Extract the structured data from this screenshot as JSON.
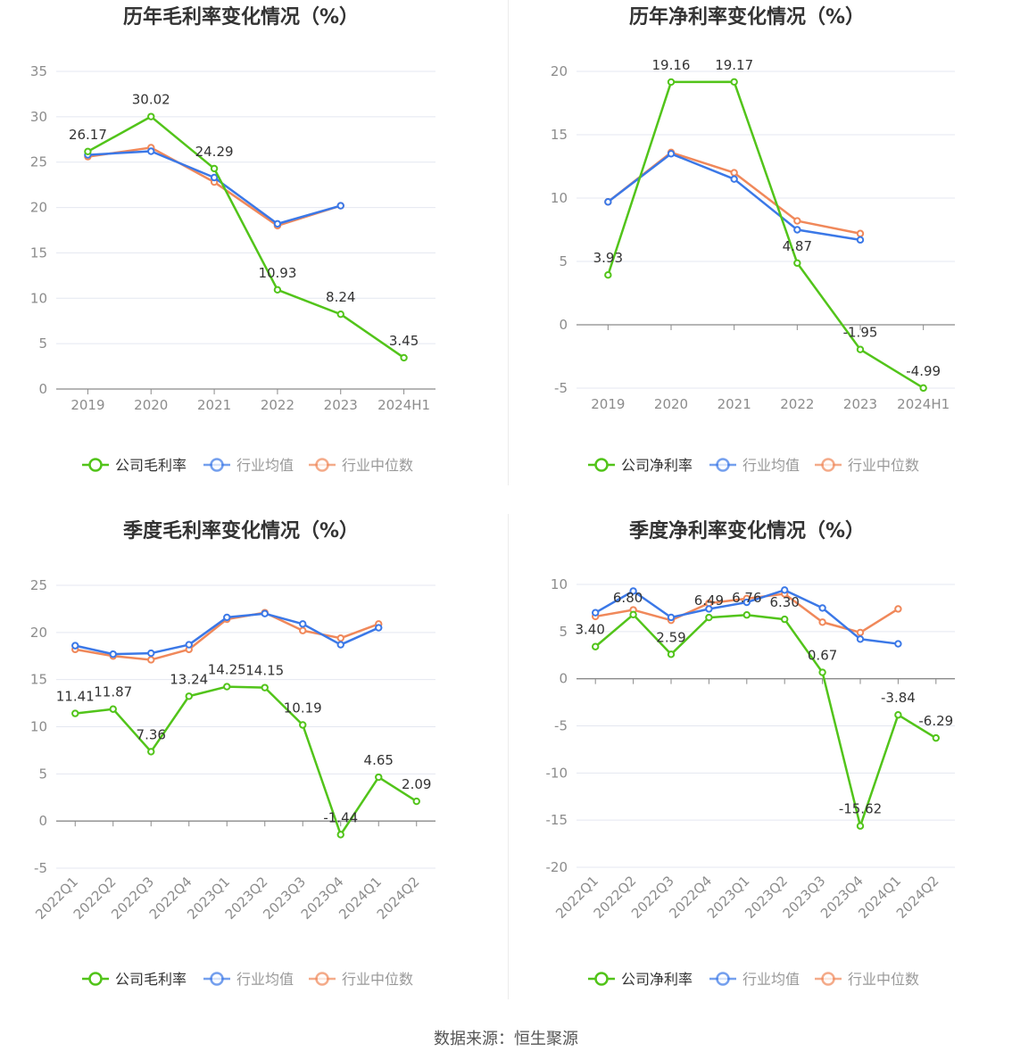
{
  "source": "数据来源：恒生聚源",
  "colors": {
    "company": "#52c41a",
    "avg": "#3b78e7",
    "median": "#f0885a",
    "grid": "#e4e7f0",
    "axis": "#8a8a8a",
    "text": "#333333",
    "tick": "#8c8c8c"
  },
  "chart_data": [
    {
      "type": "line",
      "title": "历年毛利率变化情况（%）",
      "categories": [
        "2019",
        "2020",
        "2021",
        "2022",
        "2023",
        "2024H1"
      ],
      "ylim": [
        0,
        35
      ],
      "yticks": [
        0,
        5,
        10,
        15,
        20,
        25,
        30,
        35
      ],
      "series": [
        {
          "name": "公司毛利率",
          "values": [
            26.17,
            30.02,
            24.29,
            10.93,
            8.24,
            3.45
          ],
          "labels": [
            "26.17",
            "30.02",
            "24.29",
            "10.93",
            "8.24",
            "3.45"
          ]
        },
        {
          "name": "行业均值",
          "values": [
            25.8,
            26.2,
            23.3,
            18.2,
            20.2,
            null
          ]
        },
        {
          "name": "行业中位数",
          "values": [
            25.6,
            26.6,
            22.8,
            18.0,
            20.2,
            null
          ]
        }
      ],
      "legend": "bottom"
    },
    {
      "type": "line",
      "title": "历年净利率变化情况（%）",
      "categories": [
        "2019",
        "2020",
        "2021",
        "2022",
        "2023",
        "2024H1"
      ],
      "ylim": [
        -5,
        20
      ],
      "yticks": [
        -5,
        0,
        5,
        10,
        15,
        20
      ],
      "series": [
        {
          "name": "公司净利率",
          "values": [
            3.93,
            19.16,
            19.17,
            4.87,
            -1.95,
            -4.99
          ],
          "labels": [
            "3.93",
            "19.16",
            "19.17",
            "4.87",
            "-1.95",
            "-4.99"
          ]
        },
        {
          "name": "行业均值",
          "values": [
            9.7,
            13.5,
            11.5,
            7.5,
            6.7,
            null
          ]
        },
        {
          "name": "行业中位数",
          "values": [
            9.7,
            13.6,
            12.0,
            8.2,
            7.2,
            null
          ]
        }
      ],
      "legend": "bottom"
    },
    {
      "type": "line",
      "title": "季度毛利率变化情况（%）",
      "categories": [
        "2022Q1",
        "2022Q2",
        "2022Q3",
        "2022Q4",
        "2023Q1",
        "2023Q2",
        "2023Q3",
        "2023Q4",
        "2024Q1",
        "2024Q2"
      ],
      "ylim": [
        -5,
        25
      ],
      "yticks": [
        -5,
        0,
        5,
        10,
        15,
        20,
        25
      ],
      "series": [
        {
          "name": "公司毛利率",
          "values": [
            11.41,
            11.87,
            7.36,
            13.24,
            14.25,
            14.15,
            10.19,
            -1.44,
            4.65,
            2.09
          ],
          "labels": [
            "11.41",
            "11.87",
            "7.36",
            "13.24",
            "14.25",
            "14.15",
            "10.19",
            "-1.44",
            "4.65",
            "2.09"
          ]
        },
        {
          "name": "行业均值",
          "values": [
            18.6,
            17.7,
            17.8,
            18.7,
            21.6,
            22.0,
            20.9,
            18.7,
            20.5,
            null
          ]
        },
        {
          "name": "行业中位数",
          "values": [
            18.2,
            17.5,
            17.1,
            18.2,
            21.4,
            22.1,
            20.2,
            19.4,
            20.9,
            null
          ]
        }
      ],
      "legend": "bottom"
    },
    {
      "type": "line",
      "title": "季度净利率变化情况（%）",
      "categories": [
        "2022Q1",
        "2022Q2",
        "2022Q3",
        "2022Q4",
        "2023Q1",
        "2023Q2",
        "2023Q3",
        "2023Q4",
        "2024Q1",
        "2024Q2"
      ],
      "ylim": [
        -20,
        10
      ],
      "yticks": [
        -20,
        -15,
        -10,
        -5,
        0,
        5,
        10
      ],
      "series": [
        {
          "name": "公司净利率",
          "values": [
            3.4,
            6.8,
            2.59,
            6.49,
            6.76,
            6.3,
            0.67,
            -15.62,
            -3.84,
            -6.29
          ],
          "labels": [
            "3.40",
            "6.80",
            "2.59",
            "6.49",
            "6.76",
            "6.30",
            "0.67",
            "-15.62",
            "-3.84",
            "-6.29"
          ]
        },
        {
          "name": "行业均值",
          "values": [
            7.0,
            9.3,
            6.5,
            7.4,
            8.1,
            9.4,
            7.5,
            4.2,
            3.7,
            null
          ]
        },
        {
          "name": "行业中位数",
          "values": [
            6.6,
            7.3,
            6.2,
            8.0,
            8.5,
            9.0,
            6.0,
            4.9,
            7.4,
            null
          ]
        }
      ],
      "legend": "bottom"
    }
  ]
}
